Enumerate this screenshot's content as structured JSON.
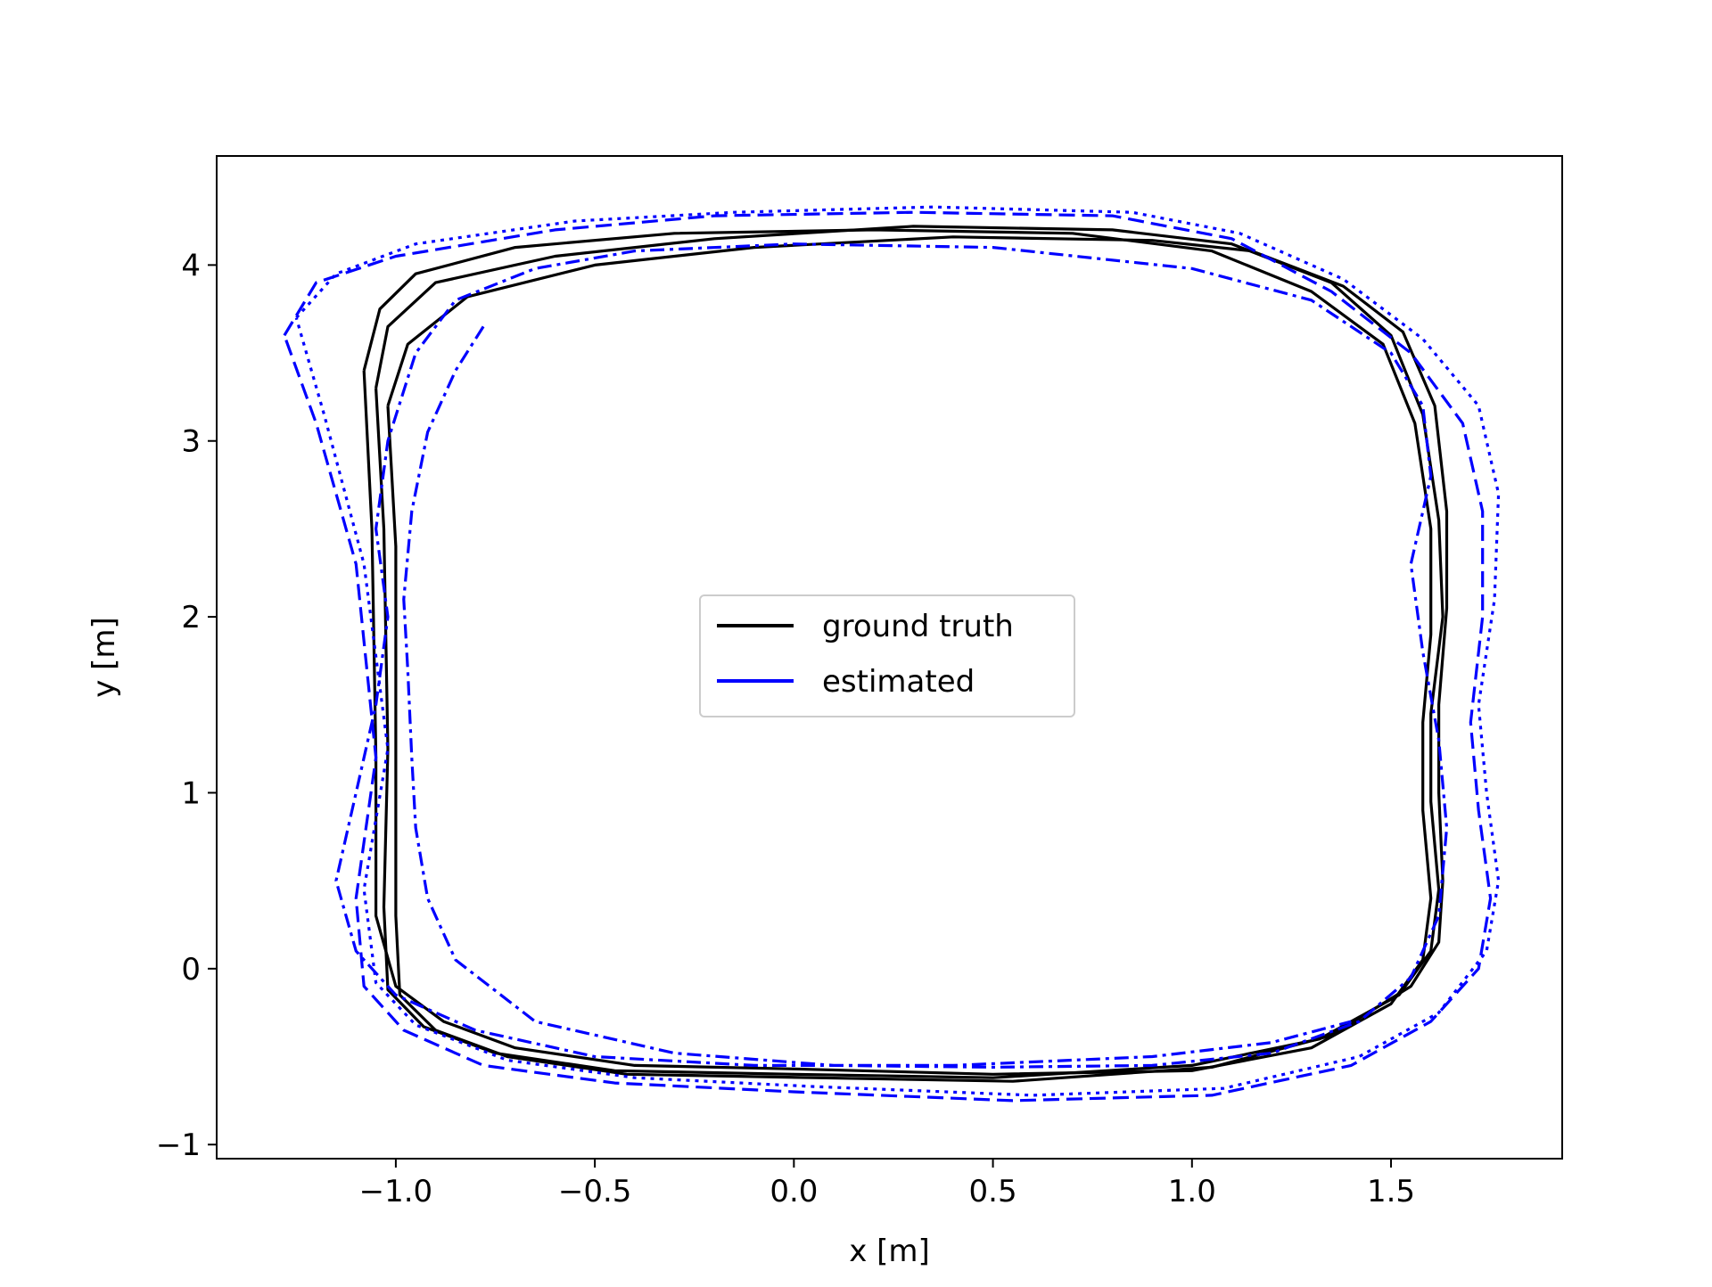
{
  "chart_data": {
    "type": "line",
    "title": "",
    "xlabel": "x [m]",
    "ylabel": "y [m]",
    "xlim": [
      -1.45,
      1.93
    ],
    "ylim": [
      -1.08,
      4.62
    ],
    "xticks": [
      -1.0,
      -0.5,
      0.0,
      0.5,
      1.0,
      1.5
    ],
    "xtick_labels": [
      "−1.0",
      "−0.5",
      "0.0",
      "0.5",
      "1.0",
      "1.5"
    ],
    "yticks": [
      -1,
      0,
      1,
      2,
      3,
      4
    ],
    "ytick_labels": [
      "−1",
      "0",
      "1",
      "2",
      "3",
      "4"
    ],
    "grid": false,
    "legend": {
      "position": "center",
      "entries": [
        {
          "label": "ground truth",
          "color": "#000000"
        },
        {
          "label": "estimated",
          "color": "#0000ff"
        }
      ]
    },
    "series": [
      {
        "name": "ground truth",
        "color": "#000000",
        "style": "solid",
        "x": [
          -1.08,
          -1.04,
          -0.95,
          -0.7,
          -0.3,
          0.2,
          0.7,
          1.05,
          1.3,
          1.48,
          1.56,
          1.6,
          1.6,
          1.58,
          1.58,
          1.6,
          1.58,
          1.5,
          1.3,
          1.0,
          0.5,
          0.0,
          -0.4,
          -0.7,
          -0.88,
          -1.0,
          -1.05,
          -1.05,
          -1.06,
          -1.08
        ],
        "y": [
          3.4,
          3.75,
          3.95,
          4.1,
          4.18,
          4.2,
          4.18,
          4.08,
          3.85,
          3.55,
          3.1,
          2.5,
          1.9,
          1.4,
          0.9,
          0.4,
          0.05,
          -0.2,
          -0.45,
          -0.58,
          -0.6,
          -0.57,
          -0.55,
          -0.45,
          -0.3,
          -0.1,
          0.3,
          1.2,
          2.5,
          3.4
        ]
      },
      {
        "name": "ground truth",
        "color": "#000000",
        "style": "solid",
        "x": [
          -1.05,
          -1.02,
          -0.9,
          -0.6,
          -0.2,
          0.3,
          0.8,
          1.1,
          1.35,
          1.5,
          1.58,
          1.62,
          1.63,
          1.6,
          1.6,
          1.62,
          1.6,
          1.52,
          1.32,
          1.0,
          0.5,
          0.0,
          -0.45,
          -0.75,
          -0.93,
          -1.02,
          -1.03,
          -1.02,
          -1.03,
          -1.05
        ],
        "y": [
          3.3,
          3.65,
          3.9,
          4.05,
          4.15,
          4.22,
          4.2,
          4.12,
          3.9,
          3.6,
          3.15,
          2.55,
          2.0,
          1.45,
          0.95,
          0.45,
          0.1,
          -0.15,
          -0.4,
          -0.55,
          -0.62,
          -0.6,
          -0.58,
          -0.48,
          -0.33,
          -0.12,
          0.35,
          1.25,
          2.5,
          3.3
        ]
      },
      {
        "name": "ground truth",
        "color": "#000000",
        "style": "solid",
        "x": [
          -1.02,
          -0.97,
          -0.82,
          -0.5,
          -0.1,
          0.4,
          0.9,
          1.15,
          1.38,
          1.53,
          1.61,
          1.64,
          1.64,
          1.62,
          1.62,
          1.63,
          1.62,
          1.55,
          1.35,
          1.05,
          0.55,
          0.05,
          -0.42,
          -0.72,
          -0.9,
          -0.99,
          -1.0,
          -1.0,
          -1.0,
          -1.02
        ],
        "y": [
          3.2,
          3.55,
          3.82,
          4.0,
          4.1,
          4.16,
          4.14,
          4.08,
          3.88,
          3.62,
          3.2,
          2.6,
          2.05,
          1.5,
          1.0,
          0.5,
          0.15,
          -0.1,
          -0.38,
          -0.56,
          -0.64,
          -0.62,
          -0.6,
          -0.5,
          -0.35,
          -0.15,
          0.3,
          1.2,
          2.4,
          3.2
        ]
      },
      {
        "name": "estimated",
        "color": "#0000ff",
        "style": "dashed",
        "x": [
          -1.28,
          -1.2,
          -1.0,
          -0.6,
          -0.2,
          0.3,
          0.8,
          1.1,
          1.35,
          1.55,
          1.68,
          1.73,
          1.73,
          1.7,
          1.72,
          1.75,
          1.72,
          1.6,
          1.4,
          1.05,
          0.55,
          0.0,
          -0.45,
          -0.78,
          -0.98,
          -1.08,
          -1.1,
          -1.05,
          -1.1,
          -1.2,
          -1.28
        ],
        "y": [
          3.6,
          3.9,
          4.05,
          4.2,
          4.28,
          4.3,
          4.28,
          4.15,
          3.85,
          3.5,
          3.1,
          2.6,
          2.0,
          1.4,
          0.9,
          0.4,
          0.0,
          -0.3,
          -0.55,
          -0.72,
          -0.75,
          -0.7,
          -0.65,
          -0.55,
          -0.35,
          -0.1,
          0.4,
          1.2,
          2.3,
          3.1,
          3.6
        ]
      },
      {
        "name": "estimated",
        "color": "#0000ff",
        "style": "dotted",
        "x": [
          -1.25,
          -1.15,
          -0.95,
          -0.55,
          -0.15,
          0.35,
          0.85,
          1.12,
          1.38,
          1.58,
          1.72,
          1.77,
          1.76,
          1.72,
          1.74,
          1.77,
          1.74,
          1.62,
          1.42,
          1.08,
          0.6,
          0.05,
          -0.4,
          -0.72,
          -0.95,
          -1.05,
          -1.08,
          -1.02,
          -1.08,
          -1.18,
          -1.25
        ],
        "y": [
          3.7,
          3.95,
          4.12,
          4.25,
          4.3,
          4.33,
          4.3,
          4.18,
          3.92,
          3.58,
          3.2,
          2.7,
          2.1,
          1.5,
          1.0,
          0.5,
          0.1,
          -0.25,
          -0.5,
          -0.68,
          -0.72,
          -0.67,
          -0.62,
          -0.52,
          -0.32,
          -0.08,
          0.45,
          1.25,
          2.3,
          3.15,
          3.7
        ]
      },
      {
        "name": "estimated",
        "color": "#0000ff",
        "style": "dashdot",
        "x": [
          -0.78,
          -0.85,
          -0.92,
          -0.96,
          -0.98,
          -0.97,
          -0.96,
          -0.95,
          -0.92,
          -0.85,
          -0.65,
          -0.3,
          0.1,
          0.5,
          0.9,
          1.2,
          1.42,
          1.55,
          1.62,
          1.64,
          1.62,
          1.58,
          1.55,
          1.6,
          1.58,
          1.5,
          1.3,
          1.0,
          0.5,
          0.0,
          -0.4,
          -0.65,
          -0.85,
          -0.95,
          -1.02,
          -1.05,
          -1.02,
          -1.05,
          -1.1,
          -1.15,
          -1.1,
          -1.0,
          -0.8,
          -0.5,
          -0.1,
          0.4,
          0.9,
          1.2,
          1.4
        ],
        "y": [
          3.65,
          3.4,
          3.05,
          2.6,
          2.1,
          1.7,
          1.2,
          0.8,
          0.4,
          0.05,
          -0.3,
          -0.48,
          -0.55,
          -0.56,
          -0.55,
          -0.48,
          -0.3,
          -0.05,
          0.3,
          0.8,
          1.3,
          1.8,
          2.3,
          2.8,
          3.2,
          3.5,
          3.8,
          3.98,
          4.1,
          4.12,
          4.08,
          3.98,
          3.8,
          3.5,
          3.0,
          2.5,
          2.0,
          1.5,
          1.0,
          0.5,
          0.1,
          -0.15,
          -0.35,
          -0.5,
          -0.55,
          -0.55,
          -0.5,
          -0.42,
          -0.3
        ]
      }
    ]
  }
}
